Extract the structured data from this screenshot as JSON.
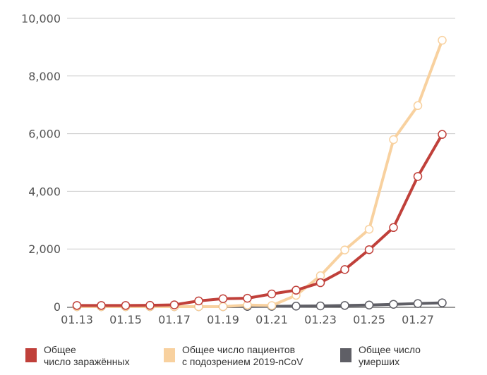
{
  "chart_data": {
    "type": "line",
    "title": "",
    "xlabel": "",
    "ylabel": "",
    "ylim": [
      0,
      10000
    ],
    "yticks": [
      "0",
      "2,000",
      "4,000",
      "6,000",
      "8,000",
      "10,000"
    ],
    "ytick_values": [
      0,
      2000,
      4000,
      6000,
      8000,
      10000
    ],
    "x": [
      "01.13",
      "01.14",
      "01.15",
      "01.16",
      "01.17",
      "01.18",
      "01.19",
      "01.20",
      "01.21",
      "01.22",
      "01.23",
      "01.24",
      "01.25",
      "01.26",
      "01.27",
      "01.28"
    ],
    "xtick_labels": [
      "01.13",
      "01.15",
      "01.17",
      "01.19",
      "01.21",
      "01.23",
      "01.25",
      "01.27"
    ],
    "grid": "horizontal",
    "legend_position": "bottom",
    "series": [
      {
        "name": "Общее число заражённых",
        "color": "#c0403a",
        "values": [
          41,
          41,
          41,
          45,
          62,
          198,
          275,
          291,
          440,
          571,
          830,
          1287,
          1975,
          2744,
          4515,
          5974
        ]
      },
      {
        "name": "Общее число пациентов с подозрением 2019-nCoV",
        "color": "#f8d19f",
        "values": [
          0,
          0,
          0,
          0,
          0,
          0,
          0,
          54,
          37,
          393,
          1072,
          1965,
          2684,
          5794,
          6973,
          9239
        ]
      },
      {
        "name": "Общее число умерших",
        "color": "#5f5f66",
        "values": [
          0,
          0,
          0,
          0,
          0,
          0,
          0,
          6,
          9,
          17,
          25,
          41,
          56,
          80,
          106,
          132
        ]
      }
    ]
  },
  "legend": {
    "items": [
      {
        "label": "Общее\nчисло заражённых",
        "color": "#c0403a"
      },
      {
        "label": "Общее число пациентов\nс подозрением 2019-nCoV",
        "color": "#f8d19f"
      },
      {
        "label": "Общее число\nумерших",
        "color": "#5f5f66"
      }
    ]
  }
}
